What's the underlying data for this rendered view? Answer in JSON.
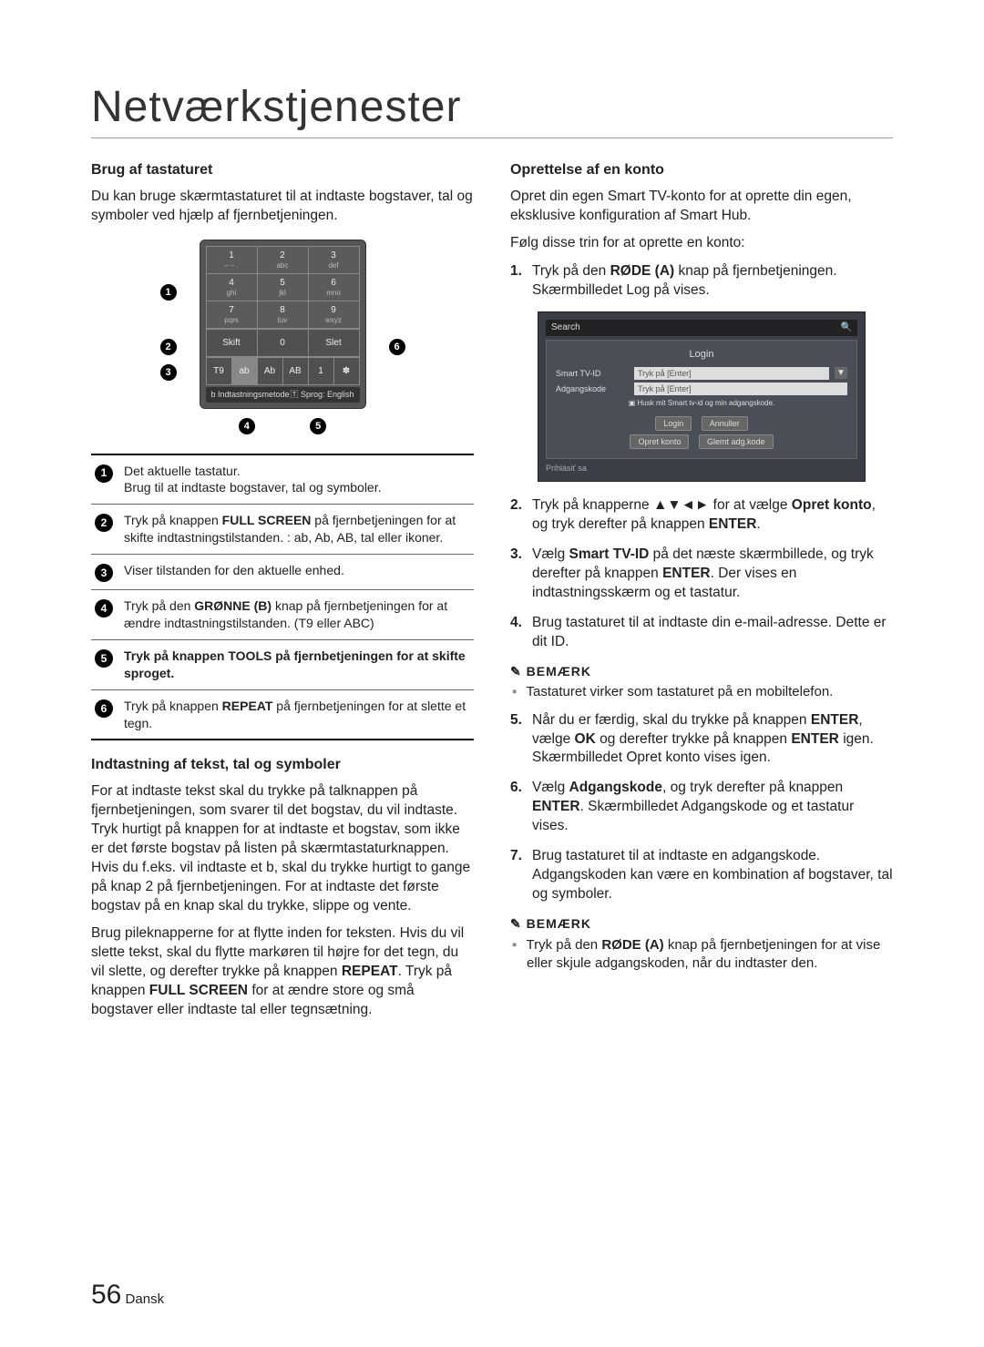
{
  "page_title": "Netværkstjenester",
  "left": {
    "h1": "Brug af tastaturet",
    "p1": "Du kan bruge skærmtastaturet til at indtaste bogstaver, tal og symboler ved hjælp af fjernbetjeningen.",
    "keyboard": {
      "rows": [
        [
          {
            "top": "1",
            "bot": "– – ."
          },
          {
            "top": "2",
            "bot": "abc"
          },
          {
            "top": "3",
            "bot": "def"
          }
        ],
        [
          {
            "top": "4",
            "bot": "ghi"
          },
          {
            "top": "5",
            "bot": "jkl"
          },
          {
            "top": "6",
            "bot": "mno"
          }
        ],
        [
          {
            "top": "7",
            "bot": "pqrs"
          },
          {
            "top": "8",
            "bot": "tuv"
          },
          {
            "top": "9",
            "bot": "wxyz"
          }
        ]
      ],
      "bottom_left": "Skift",
      "bottom_mid": "0",
      "bottom_right": "Slet",
      "mode_row": [
        "T9",
        "ab",
        "Ab",
        "AB",
        "1",
        "✽"
      ],
      "bar_left": "b Indtastningsmetode",
      "bar_right": "🅃 Sprog: English"
    },
    "callouts_below": [
      "4",
      "5"
    ],
    "legend": [
      {
        "n": "1",
        "html": "Det aktuelle tastatur.<br>Brug til at indtaste bogstaver, tal og symboler."
      },
      {
        "n": "2",
        "html": "Tryk på knappen <b>FULL SCREEN</b> på fjernbetjeningen for at skifte indtastningstilstanden. : ab, Ab, AB, tal eller ikoner."
      },
      {
        "n": "3",
        "html": "Viser tilstanden for den aktuelle enhed."
      },
      {
        "n": "4",
        "html": "Tryk på den <b>GRØNNE (B)</b> knap på fjernbetjeningen for at ændre indtastningstilstanden. (T9 eller ABC)"
      },
      {
        "n": "5",
        "html": "<b>Tryk på knappen TOOLS på fjernbetjeningen for at skifte sproget.</b>"
      },
      {
        "n": "6",
        "html": "Tryk på knappen <b>REPEAT</b> på fjernbetjeningen for at slette et tegn."
      }
    ],
    "h2": "Indtastning af tekst, tal og symboler",
    "p2": "For at indtaste tekst skal du trykke på talknappen på fjernbetjeningen, som svarer til det bogstav, du vil indtaste. Tryk hurtigt på knappen for at indtaste et bogstav, som ikke er det første bogstav på listen på skærmtastaturknappen. Hvis du f.eks. vil indtaste et b, skal du trykke hurtigt to gange på knap 2 på fjernbetjeningen. For at indtaste det første bogstav på en knap skal du trykke, slippe og vente.",
    "p3_html": "Brug pileknapperne for at flytte inden for teksten. Hvis du vil slette tekst, skal du flytte markøren til højre for det tegn, du vil slette, og derefter trykke på knappen <b>REPEAT</b>. Tryk på knappen <b>FULL SCREEN</b> for at ændre store og små bogstaver eller indtaste tal eller tegnsætning."
  },
  "right": {
    "h1": "Oprettelse af en konto",
    "p1": "Opret din egen Smart TV-konto for at oprette din egen, eksklusive konfiguration af Smart Hub.",
    "p2": "Følg disse trin for at oprette en konto:",
    "login": {
      "search": "Search",
      "title": "Login",
      "row1_label": "Smart TV-ID",
      "row1_val": "Tryk på [Enter]",
      "row2_label": "Adgangskode",
      "row2_val": "Tryk på [Enter]",
      "check": "Husk mit Smart tv-id og min adgangskode.",
      "b1": "Login",
      "b2": "Annuller",
      "b3": "Opret konto",
      "b4": "Glemt adg.kode",
      "footer": "Prihlásiť sa"
    },
    "steps_a": [
      {
        "html": "Tryk på den <b>RØDE (A)</b> knap på fjernbetjeningen. Skærmbilledet Log på vises."
      }
    ],
    "steps_b": [
      {
        "html": "Tryk på knapperne ▲▼◄► for at vælge <b>Opret konto</b>, og tryk derefter på knappen <b>ENTER</b>."
      },
      {
        "html": "Vælg <b>Smart TV-ID</b> på det næste skærmbillede, og tryk derefter på knappen <b>ENTER</b>. Der vises en indtastningsskærm og et tastatur."
      },
      {
        "html": "Brug tastaturet til at indtaste din e-mail-adresse. Dette er dit ID."
      }
    ],
    "note1_label": "BEMÆRK",
    "note1_items": [
      "Tastaturet virker som tastaturet på en mobiltelefon."
    ],
    "steps_c": [
      {
        "html": "Når du er færdig, skal du trykke på knappen <b>ENTER</b>, vælge <b>OK</b> og derefter trykke på knappen <b>ENTER</b> igen. Skærmbilledet Opret konto vises igen."
      },
      {
        "html": "Vælg <b>Adgangskode</b>, og tryk derefter på knappen <b>ENTER</b>. Skærmbilledet Adgangskode og et tastatur vises."
      },
      {
        "html": "Brug tastaturet til at indtaste en adgangskode.<br>Adgangskoden kan være en kombination af bogstaver, tal og symboler."
      }
    ],
    "note2_label": "BEMÆRK",
    "note2_items_html": [
      "Tryk på den <b>RØDE (A)</b> knap på fjernbetjeningen for at vise eller skjule adgangskoden, når du indtaster den."
    ]
  },
  "pagenum": "56",
  "pagelang": "Dansk",
  "colors": {
    "text": "#222",
    "rule": "#666"
  }
}
